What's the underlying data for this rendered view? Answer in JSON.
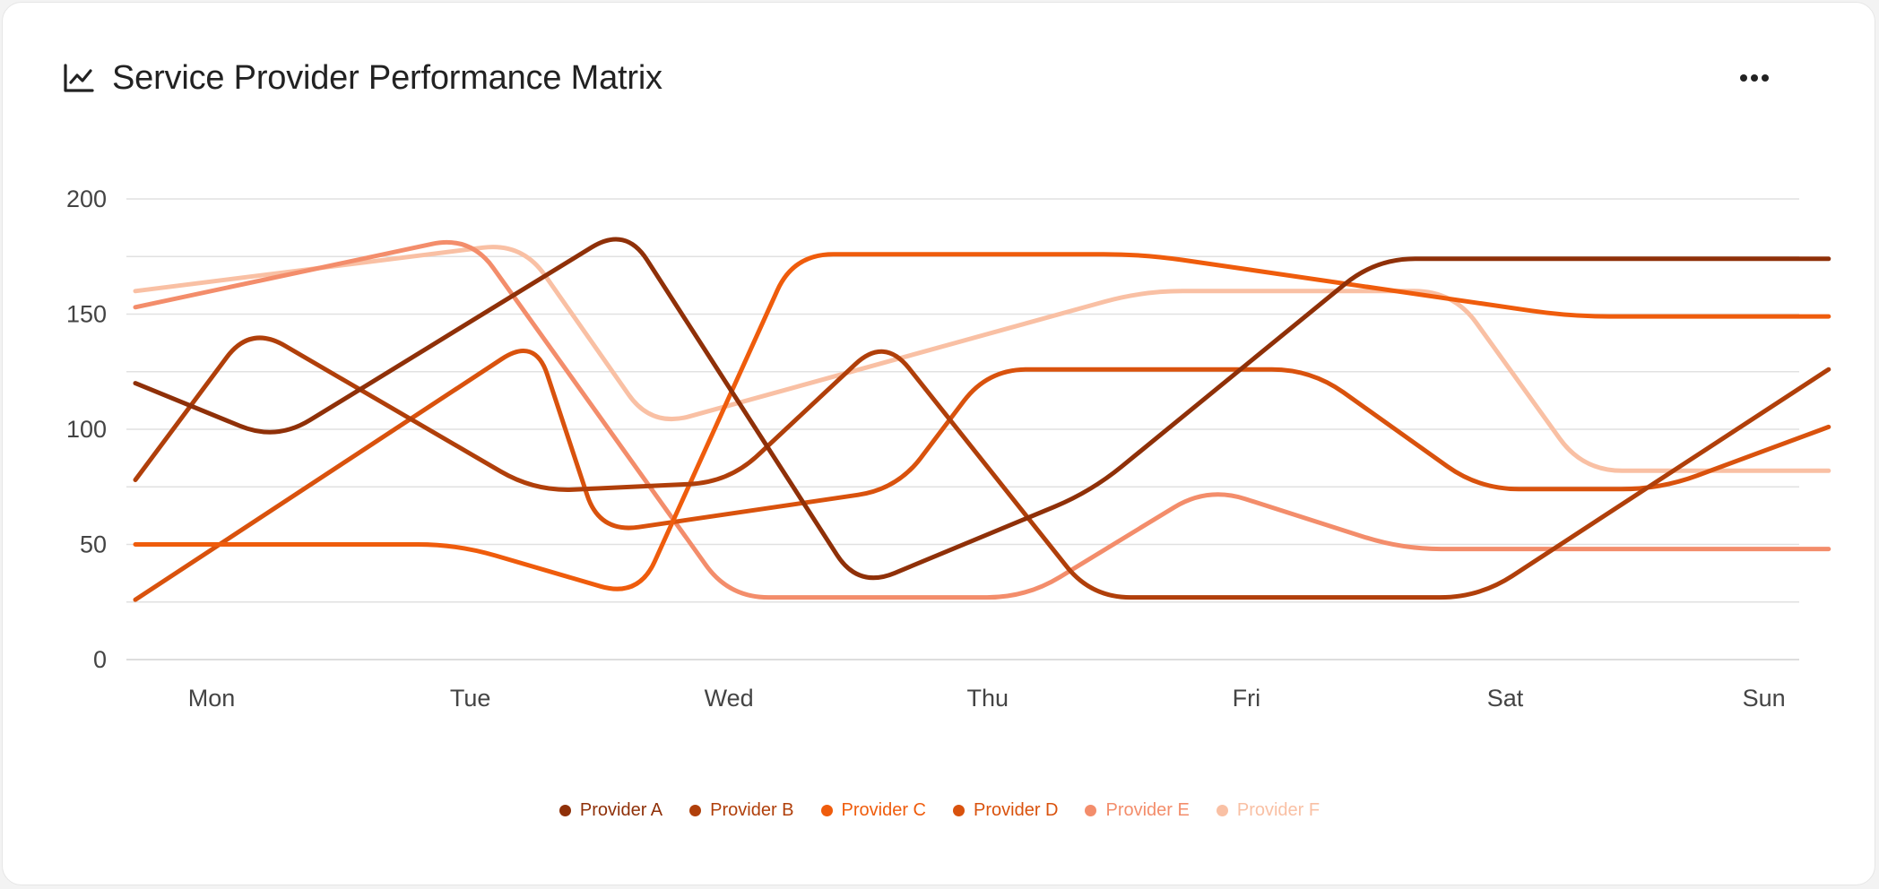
{
  "card": {
    "title": "Service Provider Performance Matrix",
    "title_icon": "line-chart-icon",
    "menu_icon": "more-horizontal-icon"
  },
  "chart_data": {
    "type": "line",
    "title": "Service Provider Performance Matrix",
    "xlabel": "",
    "ylabel": "",
    "categories": [
      "Mon",
      "Tue",
      "Wed",
      "Thu",
      "Fri",
      "Sat",
      "Sun"
    ],
    "ylim": [
      0,
      200
    ],
    "yticks": [
      0,
      50,
      100,
      150,
      200
    ],
    "grid": true,
    "legend_position": "bottom",
    "series": [
      {
        "name": "Provider A",
        "color": "#8f3008",
        "points": [
          [
            0,
            120
          ],
          [
            0.25,
            95
          ],
          [
            1.6,
            188
          ],
          [
            2.5,
            31
          ],
          [
            3.4,
            73
          ],
          [
            4.5,
            174
          ],
          [
            6.25,
            174
          ]
        ]
      },
      {
        "name": "Provider B",
        "color": "#b03f0a",
        "points": [
          [
            0,
            78
          ],
          [
            0.15,
            145
          ],
          [
            1.25,
            73
          ],
          [
            2.0,
            77
          ],
          [
            2.6,
            140
          ],
          [
            3.4,
            27
          ],
          [
            4.9,
            27
          ],
          [
            6.25,
            126
          ]
        ]
      },
      {
        "name": "Provider C",
        "color": "#ef5c0c",
        "points": [
          [
            0,
            50
          ],
          [
            0.95,
            50
          ],
          [
            1.65,
            27
          ],
          [
            2.25,
            176
          ],
          [
            3.6,
            176
          ],
          [
            5.25,
            149
          ],
          [
            6.25,
            149
          ]
        ]
      },
      {
        "name": "Provider D",
        "color": "#d9520d",
        "points": [
          [
            0,
            26
          ],
          [
            1.25,
            140
          ],
          [
            1.5,
            55
          ],
          [
            2.65,
            74
          ],
          [
            3.0,
            126
          ],
          [
            4.25,
            126
          ],
          [
            4.9,
            74
          ],
          [
            5.6,
            74
          ],
          [
            6.25,
            101
          ]
        ]
      },
      {
        "name": "Provider E",
        "color": "#f38d6b",
        "points": [
          [
            0,
            153
          ],
          [
            1.0,
            184
          ],
          [
            2.0,
            27
          ],
          [
            3.15,
            27
          ],
          [
            3.85,
            75
          ],
          [
            4.6,
            48
          ],
          [
            6.25,
            48
          ]
        ]
      },
      {
        "name": "Provider F",
        "color": "#f9c0a4",
        "points": [
          [
            0,
            160
          ],
          [
            1.2,
            181
          ],
          [
            1.7,
            101
          ],
          [
            3.6,
            160
          ],
          [
            4.8,
            160
          ],
          [
            5.3,
            82
          ],
          [
            6.25,
            82
          ]
        ]
      }
    ]
  }
}
